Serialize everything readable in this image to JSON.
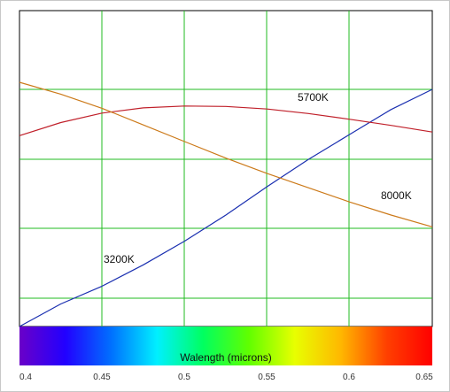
{
  "chart_data": {
    "type": "line",
    "xlabel": "Walength (microns)",
    "xlim": [
      0.4,
      0.65
    ],
    "ylim": [
      0,
      1
    ],
    "xticks": [
      "0.4",
      "0.45",
      "0.5",
      "0.55",
      "0.6",
      "0.65"
    ],
    "grid": true,
    "grid_color": "#22bb22",
    "spectrum_bar": true,
    "series": [
      {
        "name": "3200K",
        "color": "#1a2fb0",
        "x": [
          0.4,
          0.425,
          0.45,
          0.475,
          0.5,
          0.525,
          0.55,
          0.575,
          0.6,
          0.625,
          0.65
        ],
        "y": [
          0.0,
          0.095,
          0.17,
          0.26,
          0.36,
          0.47,
          0.59,
          0.705,
          0.81,
          0.915,
          1.0
        ]
      },
      {
        "name": "5700K",
        "color": "#c0202a",
        "x": [
          0.4,
          0.425,
          0.45,
          0.475,
          0.5,
          0.525,
          0.55,
          0.575,
          0.6,
          0.625,
          0.65
        ],
        "y": [
          0.805,
          0.86,
          0.9,
          0.922,
          0.93,
          0.928,
          0.917,
          0.898,
          0.874,
          0.848,
          0.82
        ]
      },
      {
        "name": "8000K",
        "color": "#cc7a1a",
        "x": [
          0.4,
          0.425,
          0.45,
          0.475,
          0.5,
          0.525,
          0.55,
          0.575,
          0.6,
          0.625,
          0.65
        ],
        "y": [
          1.03,
          0.98,
          0.92,
          0.85,
          0.78,
          0.71,
          0.645,
          0.585,
          0.525,
          0.47,
          0.42
        ]
      }
    ]
  },
  "spectrum_colors": [
    "#6a00c8",
    "#2200ff",
    "#0070ff",
    "#00f0ff",
    "#00ff60",
    "#60ff00",
    "#e8ff00",
    "#ffb800",
    "#ff4000",
    "#ff0000"
  ]
}
